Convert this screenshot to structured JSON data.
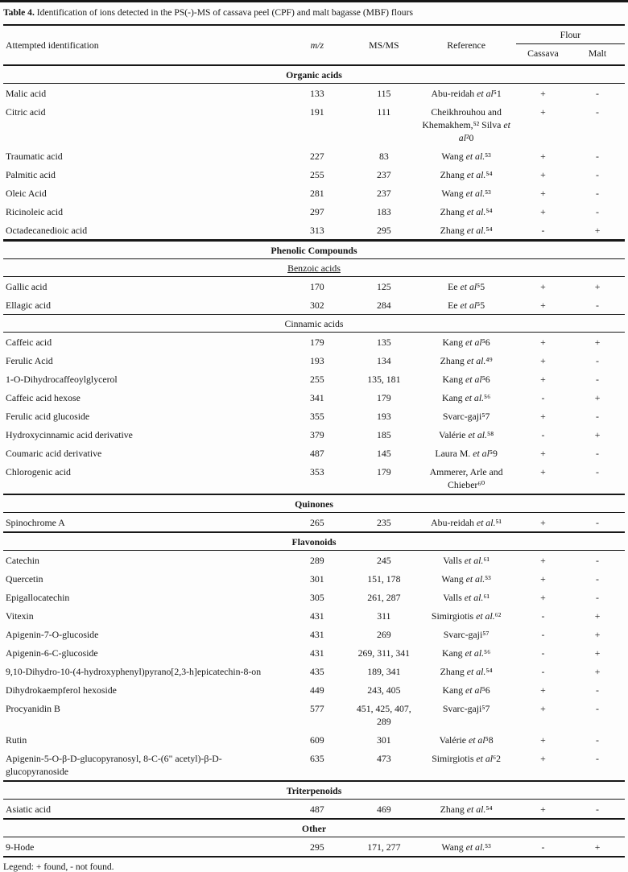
{
  "caption": {
    "label": "Table 4.",
    "text": "Identification of ions detected in the PS(-)-MS of cassava peel (CPF) and malt bagasse (MBF) flours"
  },
  "columns": {
    "identification": "Attempted identification",
    "mz": "m/z",
    "msms": "MS/MS",
    "reference": "Reference",
    "flour_group": "Flour",
    "cassava": "Cassava",
    "malt": "Malt"
  },
  "sections": [
    {
      "title": "Organic acids",
      "emphasis": "bold",
      "rows": [
        {
          "identification": "Malic acid",
          "mz": "133",
          "msms": "115",
          "reference": "Abu-reidah et al⁵1",
          "cassava": "+",
          "malt": "-"
        },
        {
          "identification": "Citric acid",
          "mz": "191",
          "msms": "111",
          "reference": "Cheikhrouhou and Khemakhem,⁵² Silva et al²0",
          "cassava": "+",
          "malt": "-"
        },
        {
          "identification": "Traumatic acid",
          "mz": "227",
          "msms": "83",
          "reference": "Wang et al.⁵³",
          "cassava": "+",
          "malt": "-"
        },
        {
          "identification": "Palmitic acid",
          "mz": "255",
          "msms": "237",
          "reference": "Zhang et al.⁵⁴",
          "cassava": "+",
          "malt": "-"
        },
        {
          "identification": "Oleic Acid",
          "mz": "281",
          "msms": "237",
          "reference": "Wang et al.⁵³",
          "cassava": "+",
          "malt": "-"
        },
        {
          "identification": "Ricinoleic acid",
          "mz": "297",
          "msms": "183",
          "reference": "Zhang et al.⁵⁴",
          "cassava": "+",
          "malt": "-"
        },
        {
          "identification": "Octadecanedioic acid",
          "mz": "313",
          "msms": "295",
          "reference": "Zhang et al.⁵⁴",
          "cassava": "-",
          "malt": "+"
        }
      ]
    },
    {
      "title": "Phenolic Compounds",
      "emphasis": "bold",
      "rows": []
    },
    {
      "title": "Benzoic acids",
      "emphasis": "underline",
      "rows": [
        {
          "identification": "Gallic acid",
          "mz": "170",
          "msms": "125",
          "reference": "Ee et al⁵5",
          "cassava": "+",
          "malt": "+"
        },
        {
          "identification": "Ellagic acid",
          "mz": "302",
          "msms": "284",
          "reference": "Ee et al⁵5",
          "cassava": "+",
          "malt": "-"
        }
      ]
    },
    {
      "title": "Cinnamic acids",
      "emphasis": "plain",
      "rows": [
        {
          "identification": "Caffeic acid",
          "mz": "179",
          "msms": "135",
          "reference": "Kang et al⁵6",
          "cassava": "+",
          "malt": "+"
        },
        {
          "identification": "Ferulic Acid",
          "mz": "193",
          "msms": "134",
          "reference": "Zhang et al.⁴⁹",
          "cassava": "+",
          "malt": "-"
        },
        {
          "identification": "1-O-Dihydrocaffeoylglycerol",
          "mz": "255",
          "msms": "135, 181",
          "reference": "Kang et al⁵6",
          "cassava": "+",
          "malt": "-"
        },
        {
          "identification": "Caffeic acid hexose",
          "mz": "341",
          "msms": "179",
          "reference": "Kang et al.⁵⁶",
          "cassava": "-",
          "malt": "+"
        },
        {
          "identification": "Ferulic acid glucoside",
          "mz": "355",
          "msms": "193",
          "reference": "Svarc-gaji⁵7",
          "cassava": "+",
          "malt": "-"
        },
        {
          "identification": "Hydroxycinnamic acid derivative",
          "mz": "379",
          "msms": "185",
          "reference": "Valérie et al.⁵⁸",
          "cassava": "-",
          "malt": "+"
        },
        {
          "identification": "Coumaric acid derivative",
          "mz": "487",
          "msms": "145",
          "reference": "Laura M. et al⁵9",
          "cassava": "+",
          "malt": "-"
        },
        {
          "identification": "Chlorogenic acid",
          "mz": "353",
          "msms": "179",
          "reference": "Ammerer, Arle and Chieber⁶⁰",
          "cassava": "+",
          "malt": "-"
        }
      ]
    },
    {
      "title": "Quinones",
      "emphasis": "bold",
      "rows": [
        {
          "identification": "Spinochrome A",
          "mz": "265",
          "msms": "235",
          "reference": "Abu-reidah et al.⁵¹",
          "cassava": "+",
          "malt": "-"
        }
      ]
    },
    {
      "title": "Flavonoids",
      "emphasis": "bold",
      "rows": [
        {
          "identification": "Catechin",
          "mz": "289",
          "msms": "245",
          "reference": "Valls et al.⁶¹",
          "cassava": "+",
          "malt": "-"
        },
        {
          "identification": "Quercetin",
          "mz": "301",
          "msms": "151, 178",
          "reference": "Wang et al.⁵³",
          "cassava": "+",
          "malt": "-"
        },
        {
          "identification": "Epigallocatechin",
          "mz": "305",
          "msms": "261, 287",
          "reference": "Valls et al.⁶¹",
          "cassava": "+",
          "malt": "-"
        },
        {
          "identification": "Vitexin",
          "mz": "431",
          "msms": "311",
          "reference": "Simirgiotis et al.⁶²",
          "cassava": "-",
          "malt": "+"
        },
        {
          "identification": "Apigenin-7-O-glucoside",
          "mz": "431",
          "msms": "269",
          "reference": "Svarc-gaji⁵⁷",
          "cassava": "-",
          "malt": "+"
        },
        {
          "identification": "Apigenin-6-C-glucoside",
          "mz": "431",
          "msms": "269, 311, 341",
          "reference": "Kang et al.⁵⁶",
          "cassava": "-",
          "malt": "+"
        },
        {
          "identification": "9,10-Dihydro-10-(4-hydroxyphenyl)pyrano[2,3-h]epicatechin-8-on",
          "mz": "435",
          "msms": "189, 341",
          "reference": "Zhang et al.⁵⁴",
          "cassava": "-",
          "malt": "+"
        },
        {
          "identification": "Dihydrokaempferol hexoside",
          "mz": "449",
          "msms": "243, 405",
          "reference": "Kang et al⁵6",
          "cassava": "+",
          "malt": "-"
        },
        {
          "identification": "Procyanidin B",
          "mz": "577",
          "msms": "451, 425, 407, 289",
          "reference": "Svarc-gaji⁵7",
          "cassava": "+",
          "malt": "-"
        },
        {
          "identification": "Rutin",
          "mz": "609",
          "msms": "301",
          "reference": "Valérie et al⁵8",
          "cassava": "+",
          "malt": "-"
        },
        {
          "identification": "Apigenin-5-O-β-D-glucopyranosyl, 8-C-(6\" acetyl)-β-D-glucopyranoside",
          "mz": "635",
          "msms": "473",
          "reference": "Simirgiotis et al⁶2",
          "cassava": "+",
          "malt": "-"
        }
      ]
    },
    {
      "title": "Triterpenoids",
      "emphasis": "bold",
      "rows": [
        {
          "identification": "Asiatic acid",
          "mz": "487",
          "msms": "469",
          "reference": "Zhang et al.⁵⁴",
          "cassava": "+",
          "malt": "-"
        }
      ]
    },
    {
      "title": "Other",
      "emphasis": "bold",
      "rows": [
        {
          "identification": "9-Hode",
          "mz": "295",
          "msms": "171, 277",
          "reference": "Wang et al.⁵³",
          "cassava": "-",
          "malt": "+"
        }
      ]
    }
  ],
  "legend": "Legend: + found, - not found."
}
